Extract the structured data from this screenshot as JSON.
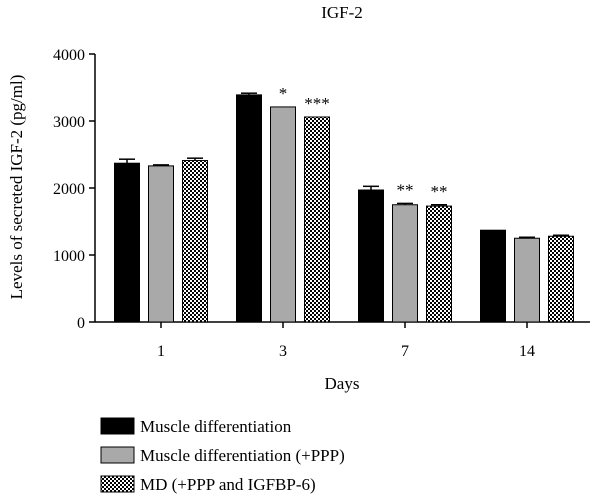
{
  "chart_data": {
    "type": "bar",
    "title": "IGF-2",
    "xlabel": "Days",
    "ylabel": "Levels of secreted IGF-2 (pg/ml)",
    "ylim": [
      0,
      4000
    ],
    "yticks": [
      0,
      1000,
      2000,
      3000,
      4000
    ],
    "categories": [
      "1",
      "3",
      "7",
      "14"
    ],
    "series": [
      {
        "name": "Muscle differentiation",
        "fill": "solid-black",
        "values": [
          2370,
          3390,
          1970,
          1370
        ],
        "errors": [
          60,
          25,
          55,
          0
        ],
        "annotations": [
          "",
          "",
          "",
          ""
        ]
      },
      {
        "name": "Muscle differentiation (+PPP)",
        "fill": "grey",
        "values": [
          2330,
          3210,
          1750,
          1250
        ],
        "errors": [
          15,
          0,
          20,
          15
        ],
        "annotations": [
          "",
          "*",
          "**",
          ""
        ]
      },
      {
        "name": "MD (+PPP and IGFBP-6)",
        "fill": "checkered",
        "values": [
          2410,
          3060,
          1730,
          1280
        ],
        "errors": [
          35,
          0,
          20,
          15
        ],
        "annotations": [
          "",
          "***",
          "**",
          ""
        ]
      }
    ],
    "legend_position": "bottom-left",
    "grid": false
  }
}
